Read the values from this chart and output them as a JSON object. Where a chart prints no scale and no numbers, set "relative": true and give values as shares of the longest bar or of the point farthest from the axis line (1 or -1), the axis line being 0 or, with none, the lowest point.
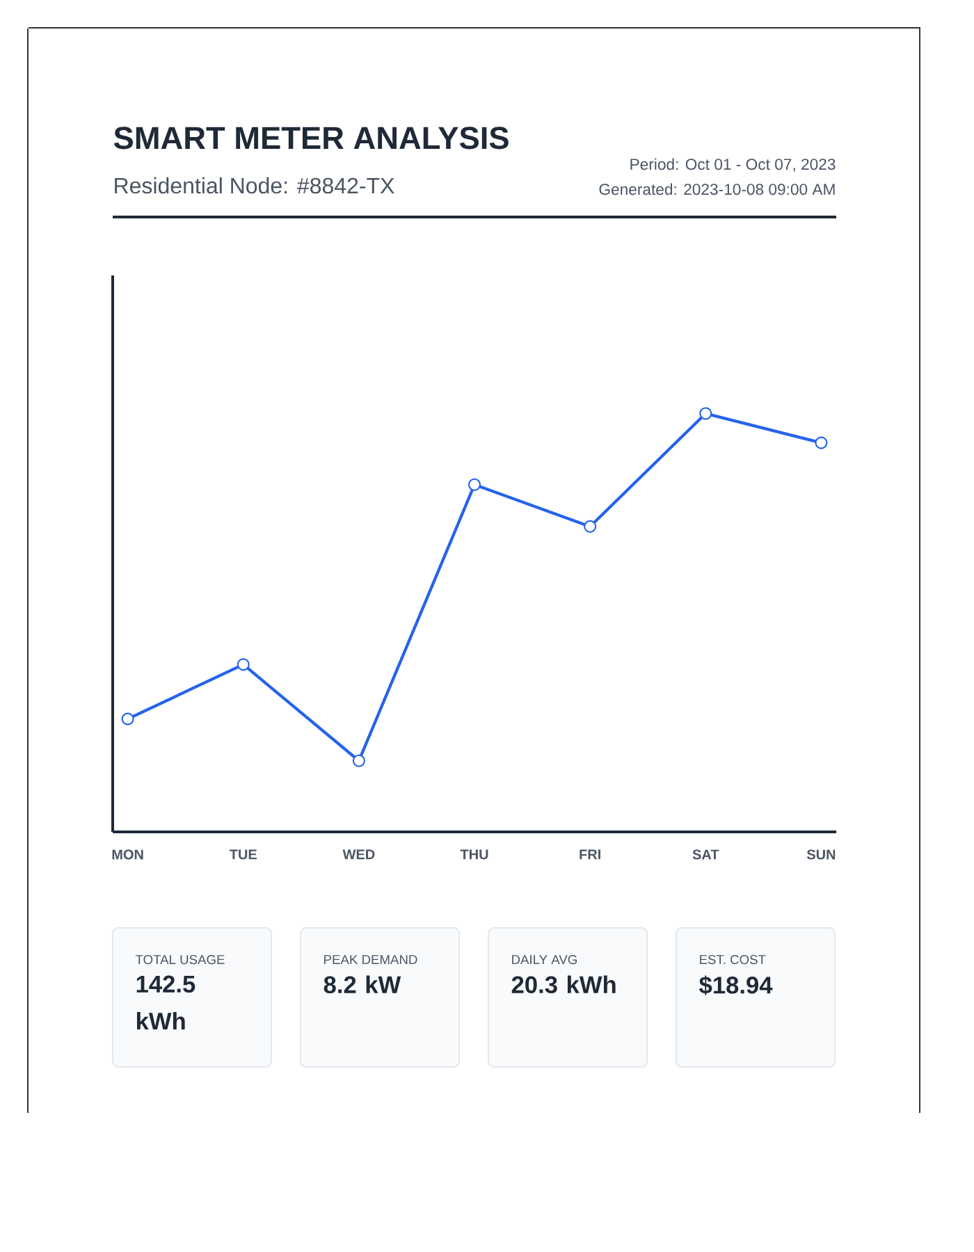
{
  "chart_data": [
    {
      "type": "line",
      "title": "SMART METER ANALYSIS",
      "subtitle": "Residential Node: #8842-TX",
      "annotations": [
        "Period: Oct 01 - Oct 07, 2023",
        "Generated: 2023-10-08 09:00 AM"
      ],
      "categories": [
        "MON",
        "TUE",
        "WED",
        "THU",
        "FRI",
        "SAT",
        "SUN"
      ],
      "values": [
        0.27,
        0.4,
        0.17,
        0.83,
        0.73,
        1,
        0.93
      ],
      "color": "#2563eb",
      "relative": true,
      "marker": "circle",
      "tick_labels": "x"
    },
    {
      "type": "other",
      "title": "TOTAL USAGE",
      "annotations": [
        "142.5 kWh"
      ]
    },
    {
      "type": "other",
      "title": "PEAK DEMAND",
      "annotations": [
        "8.2 kW"
      ]
    },
    {
      "type": "other",
      "title": "DAILY AVG",
      "annotations": [
        "20.3 kWh"
      ]
    },
    {
      "type": "other",
      "title": "EST. COST",
      "annotations": [
        "$18.94"
      ]
    }
  ]
}
